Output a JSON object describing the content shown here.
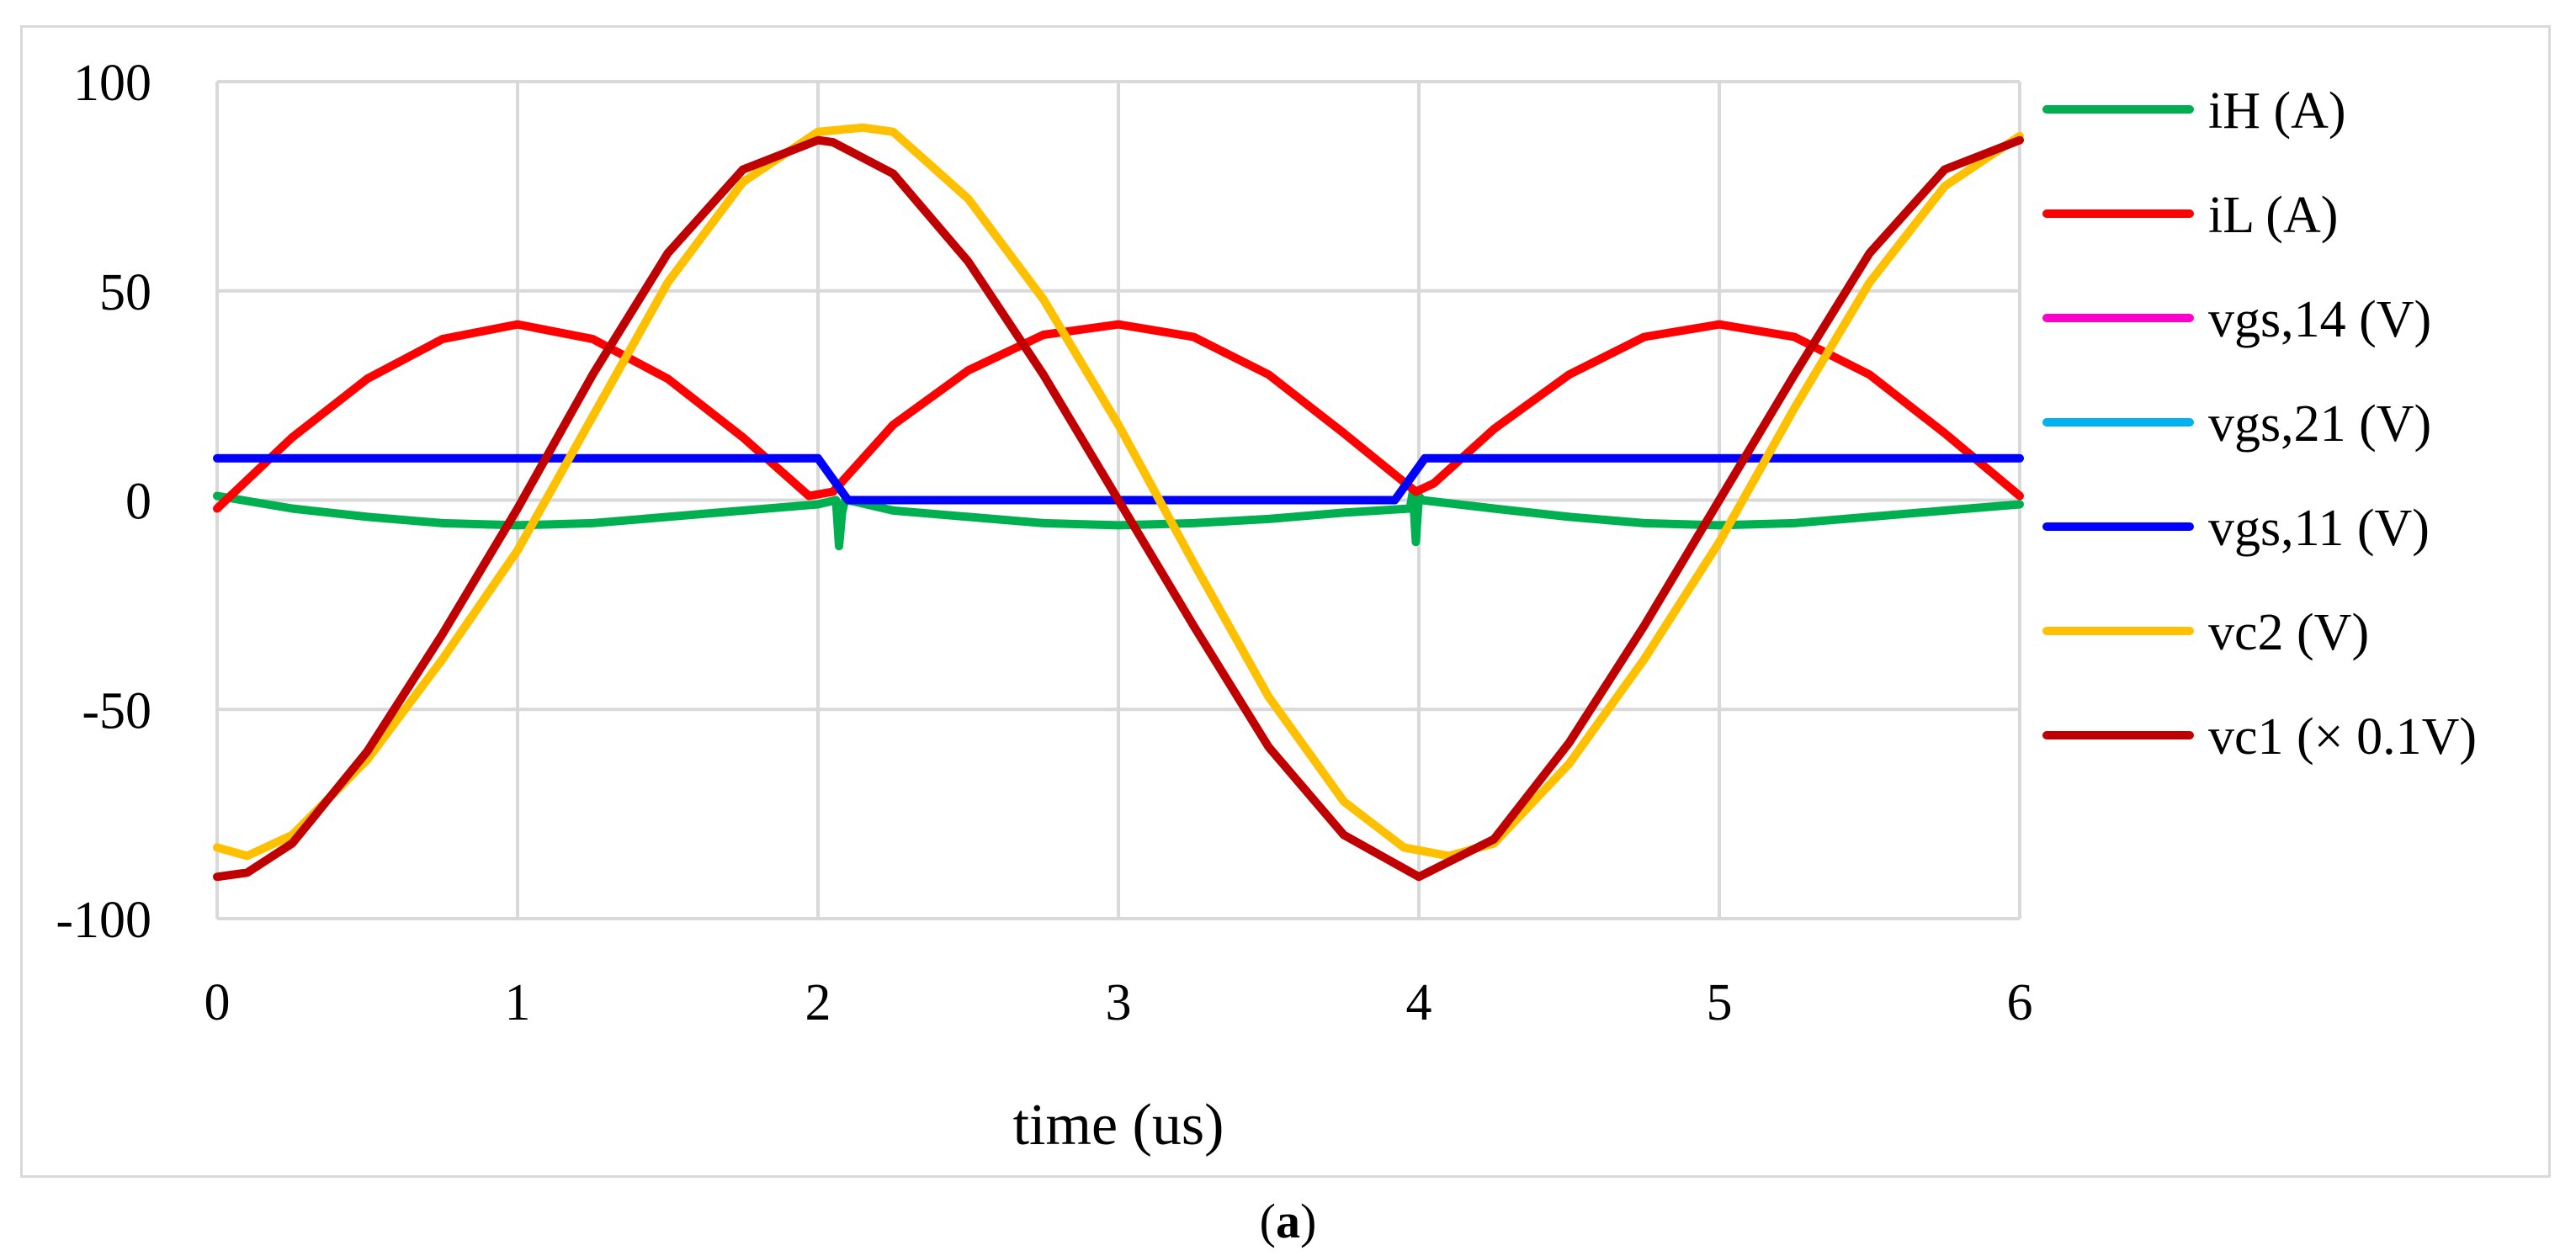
{
  "chart_data": {
    "type": "line",
    "xlabel": "time (us)",
    "ylabel": "",
    "xlim": [
      0,
      6
    ],
    "ylim": [
      -100,
      100
    ],
    "xticks": [
      0,
      1,
      2,
      3,
      4,
      5,
      6
    ],
    "yticks": [
      100,
      50,
      0,
      -50,
      -100
    ],
    "grid": "on",
    "legend_position": "right",
    "series": [
      {
        "name": "iH (A)",
        "color": "#00b050",
        "x": [
          0,
          0.25,
          0.5,
          0.75,
          1.0,
          1.25,
          1.5,
          1.75,
          2.0,
          2.06,
          2.07,
          2.08,
          2.09,
          2.1,
          2.25,
          2.5,
          2.75,
          3.0,
          3.25,
          3.5,
          3.75,
          3.97,
          3.98,
          3.99,
          4.0,
          4.01,
          4.25,
          4.5,
          4.75,
          5.0,
          5.25,
          5.5,
          5.75,
          6.0
        ],
        "y": [
          1,
          -2,
          -4,
          -5.5,
          -6,
          -5.5,
          -4,
          -2.5,
          -1,
          0,
          -11,
          -3,
          0,
          0,
          -2.5,
          -4,
          -5.5,
          -6,
          -5.5,
          -4.5,
          -3,
          -2,
          2,
          -10,
          1,
          0,
          -2,
          -4,
          -5.5,
          -6,
          -5.5,
          -4,
          -2.5,
          -1
        ]
      },
      {
        "name": "iL (A)",
        "color": "#ff0000",
        "x": [
          0,
          0.25,
          0.5,
          0.75,
          1.0,
          1.25,
          1.5,
          1.75,
          1.97,
          2.05,
          2.25,
          2.5,
          2.75,
          3.0,
          3.25,
          3.5,
          3.75,
          3.99,
          4.05,
          4.25,
          4.5,
          4.75,
          5.0,
          5.25,
          5.5,
          5.75,
          6.0
        ],
        "y": [
          -2,
          15,
          29,
          38.5,
          42,
          38.5,
          29,
          15,
          1,
          2,
          18,
          31,
          39.5,
          42,
          39,
          30,
          16,
          2,
          4,
          17,
          30,
          39,
          42,
          39,
          30,
          16,
          1
        ]
      },
      {
        "name": "vgs,14 (V)",
        "color": "#ff00cc",
        "x": [],
        "y": []
      },
      {
        "name": "vgs,21 (V)",
        "color": "#00b0f0",
        "x": [],
        "y": []
      },
      {
        "name": "vgs,11 (V)",
        "color": "#0000ff",
        "x": [
          0,
          2.0,
          2.1,
          3.92,
          4.02,
          6.0
        ],
        "y": [
          10,
          10,
          0,
          0,
          10,
          10
        ]
      },
      {
        "name": "vc2 (V)",
        "color": "#ffc000",
        "x": [
          0,
          0.1,
          0.25,
          0.5,
          0.75,
          1.0,
          1.25,
          1.5,
          1.75,
          2.0,
          2.15,
          2.25,
          2.5,
          2.75,
          3.0,
          3.25,
          3.5,
          3.75,
          3.95,
          4.1,
          4.25,
          4.5,
          4.75,
          5.0,
          5.25,
          5.5,
          5.75,
          6.0
        ],
        "y": [
          -83,
          -85,
          -80,
          -62,
          -38,
          -12,
          20,
          52,
          76,
          88,
          89,
          88,
          72,
          48,
          18,
          -15,
          -47,
          -72,
          -83,
          -85,
          -82,
          -63,
          -38,
          -10,
          22,
          52,
          75,
          87
        ]
      },
      {
        "name": "vc1 (× 0.1V)",
        "color": "#c00000",
        "x": [
          0,
          0.1,
          0.25,
          0.5,
          0.75,
          1.0,
          1.25,
          1.5,
          1.75,
          2.0,
          2.05,
          2.25,
          2.5,
          2.75,
          3.0,
          3.25,
          3.5,
          3.75,
          4.0,
          4.25,
          4.5,
          4.75,
          5.0,
          5.25,
          5.5,
          5.75,
          6.0
        ],
        "y": [
          -90,
          -89,
          -82,
          -60,
          -32,
          -2,
          30,
          59,
          79,
          86,
          85.5,
          78,
          57,
          30,
          0,
          -30,
          -59,
          -80,
          -90,
          -81,
          -58,
          -30,
          0,
          30,
          59,
          79,
          86
        ]
      }
    ]
  },
  "caption": {
    "label": "a"
  }
}
